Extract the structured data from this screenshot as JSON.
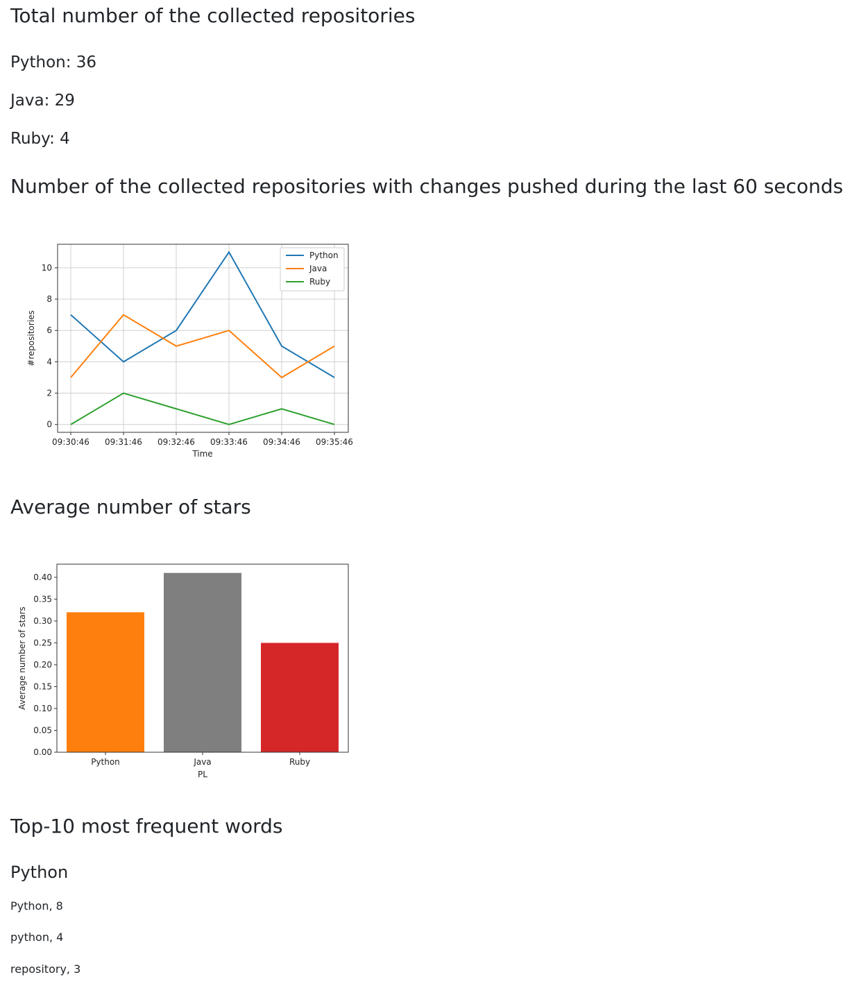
{
  "totals": {
    "title": "Total number of the collected repositories",
    "items": [
      "Python: 36",
      "Java: 29",
      "Ruby: 4"
    ]
  },
  "recent": {
    "title": "Number of the collected repositories with changes pushed during the last 60 seconds"
  },
  "stars": {
    "title": "Average number of stars"
  },
  "words": {
    "title": "Top-10 most frequent words",
    "section": "Python",
    "items": [
      "Python, 8",
      "python, 4",
      "repository, 3"
    ]
  },
  "colors": {
    "python": "#1f77b4",
    "java": "#ff7f0e",
    "ruby": "#2ca02c",
    "bar_python": "#ff7f0e",
    "bar_java": "#7f7f7f",
    "bar_ruby": "#d62728"
  },
  "chart_data": [
    {
      "type": "line",
      "title": "",
      "xlabel": "Time",
      "ylabel": "#repositories",
      "x": [
        "09:30:46",
        "09:31:46",
        "09:32:46",
        "09:33:46",
        "09:34:46",
        "09:35:46"
      ],
      "ylim": [
        -0.5,
        11.5
      ],
      "yticks": [
        0,
        2,
        4,
        6,
        8,
        10
      ],
      "grid": true,
      "legend": "top-right",
      "series": [
        {
          "name": "Python",
          "values": [
            7,
            4,
            6,
            11,
            5,
            3
          ]
        },
        {
          "name": "Java",
          "values": [
            3,
            7,
            5,
            6,
            3,
            5
          ]
        },
        {
          "name": "Ruby",
          "values": [
            0,
            2,
            1,
            0,
            1,
            0
          ]
        }
      ]
    },
    {
      "type": "bar",
      "title": "",
      "xlabel": "PL",
      "ylabel": "Average number of stars",
      "categories": [
        "Python",
        "Java",
        "Ruby"
      ],
      "values": [
        0.32,
        0.41,
        0.25
      ],
      "ylim": [
        0,
        0.43
      ],
      "yticks": [
        "0.00",
        "0.05",
        "0.10",
        "0.15",
        "0.20",
        "0.25",
        "0.30",
        "0.35",
        "0.40"
      ],
      "grid": false
    }
  ]
}
